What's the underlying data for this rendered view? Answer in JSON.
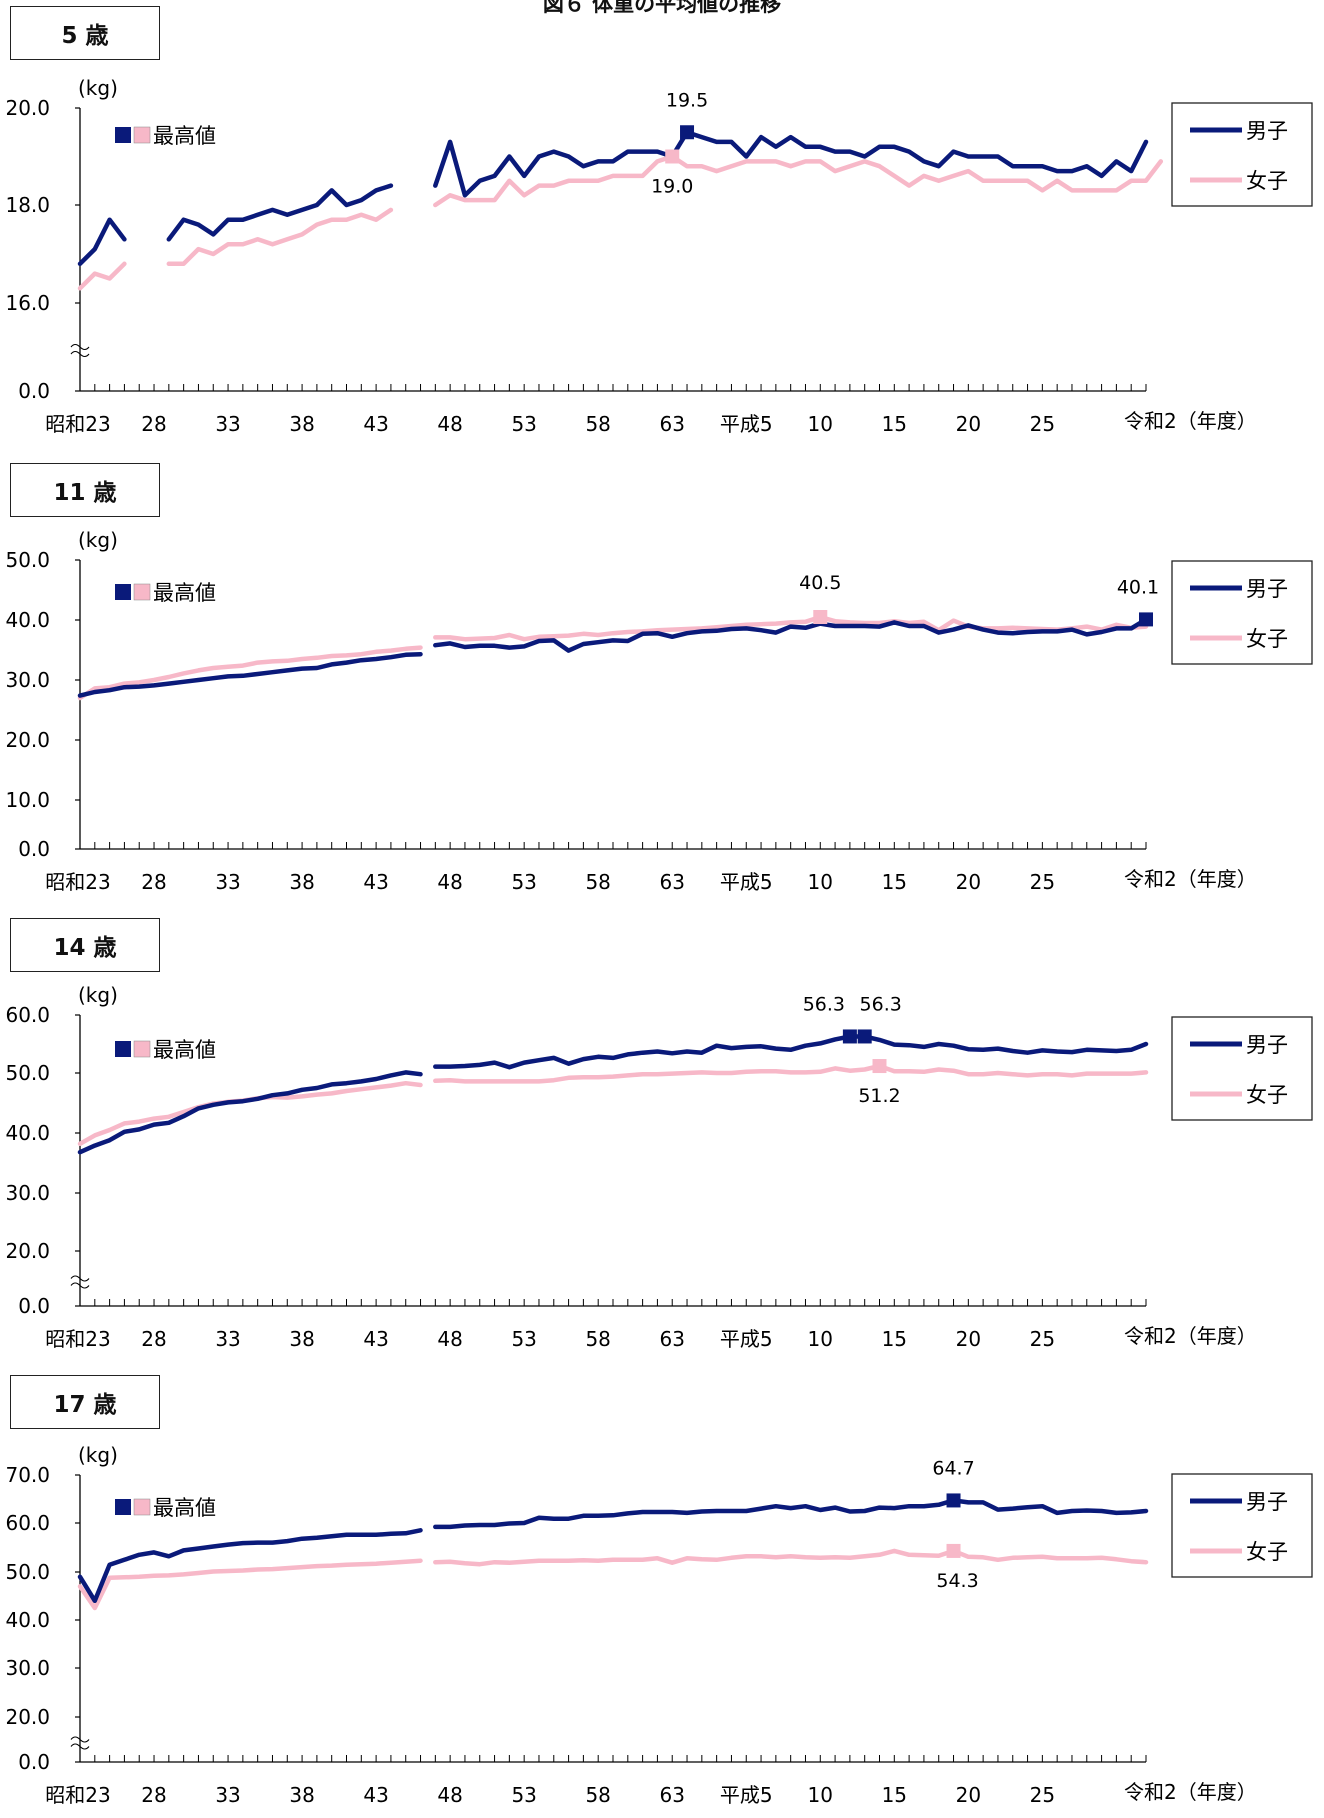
{
  "figure_title": "図６ 体重の平均値の推移",
  "x_tick_labels": [
    "昭和23",
    "28",
    "33",
    "38",
    "43",
    "48",
    "53",
    "58",
    "63",
    "平成5",
    "10",
    "15",
    "20",
    "25",
    "令和2（年度）"
  ],
  "colors": {
    "boys": "#0a1a7a",
    "girls": "#f7b8c8"
  },
  "chart_data": [
    {
      "type": "line",
      "panel": "5 歳",
      "ylabel": "(kg)",
      "y_tick_labels": [
        "20.0",
        "18.0",
        "16.0",
        "0.0"
      ],
      "axis_break": true,
      "x_start": "昭和23",
      "series": [
        {
          "name": "男子",
          "segments": [
            {
              "start": 0,
              "values": [
                16.8,
                17.1,
                17.7,
                17.3
              ]
            },
            {
              "start": 6,
              "values": [
                17.3,
                17.7,
                17.6,
                17.4,
                17.7,
                17.7,
                17.8,
                17.9,
                17.8,
                17.9,
                18.0,
                18.3,
                18.0,
                18.1,
                18.3,
                18.4
              ]
            },
            {
              "start": 24,
              "values": [
                18.4,
                19.3,
                18.2,
                18.5,
                18.6,
                19.0,
                18.6,
                19.0,
                19.1,
                19.0,
                18.8,
                18.9,
                18.9,
                19.1,
                19.1,
                19.1,
                19.0,
                19.5,
                19.4,
                19.3,
                19.3,
                19.0,
                19.4,
                19.2,
                19.4,
                19.2,
                19.2,
                19.1,
                19.1,
                19.0,
                19.2,
                19.2,
                19.1,
                18.9,
                18.8,
                19.1,
                19.0,
                19.0,
                19.0,
                18.8,
                18.8,
                18.8,
                18.7,
                18.7,
                18.8,
                18.6,
                18.9,
                18.7,
                19.3
              ]
            }
          ]
        },
        {
          "name": "女子",
          "segments": [
            {
              "start": 0,
              "values": [
                16.3,
                16.6,
                16.5,
                16.8
              ]
            },
            {
              "start": 6,
              "values": [
                16.8,
                16.8,
                17.1,
                17.0,
                17.2,
                17.2,
                17.3,
                17.2,
                17.3,
                17.4,
                17.6,
                17.7,
                17.7,
                17.8,
                17.7,
                17.9
              ]
            },
            {
              "start": 24,
              "values": [
                18.0,
                18.2,
                18.1,
                18.1,
                18.1,
                18.5,
                18.2,
                18.4,
                18.4,
                18.5,
                18.5,
                18.5,
                18.6,
                18.6,
                18.6,
                18.9,
                19.0,
                18.8,
                18.8,
                18.7,
                18.8,
                18.9,
                18.9,
                18.9,
                18.8,
                18.9,
                18.9,
                18.7,
                18.8,
                18.9,
                18.8,
                18.6,
                18.4,
                18.6,
                18.5,
                18.6,
                18.7,
                18.5,
                18.5,
                18.5,
                18.5,
                18.3,
                18.5,
                18.3,
                18.3,
                18.3,
                18.3,
                18.5,
                18.5,
                18.9
              ]
            }
          ]
        }
      ],
      "max_markers": [
        {
          "series": "男子",
          "label": "19.5",
          "index": 41
        },
        {
          "series": "女子",
          "label": "19.0",
          "index": 40
        }
      ],
      "legend": [
        "男子",
        "女子"
      ],
      "marker_legend_label": "最高値"
    },
    {
      "type": "line",
      "panel": "11 歳",
      "ylabel": "(kg)",
      "y_tick_labels": [
        "50.0",
        "40.0",
        "30.0",
        "20.0",
        "10.0",
        "0.0"
      ],
      "axis_break": false,
      "x_start": "昭和23",
      "series": [
        {
          "name": "男子",
          "segments": [
            {
              "start": 0,
              "values": [
                27.4,
                28.0,
                28.3,
                28.8,
                28.9,
                29.1,
                29.4,
                29.7,
                30.0,
                30.3,
                30.6,
                30.7,
                31.0,
                31.3,
                31.6,
                31.9,
                32.0,
                32.6,
                32.9,
                33.3,
                33.5,
                33.8,
                34.2,
                34.3
              ]
            },
            {
              "start": 24,
              "values": [
                35.8,
                36.1,
                35.5,
                35.7,
                35.7,
                35.4,
                35.6,
                36.5,
                36.6,
                34.9,
                36.0,
                36.3,
                36.6,
                36.5,
                37.7,
                37.8,
                37.2,
                37.8,
                38.1,
                38.2,
                38.5,
                38.6,
                38.3,
                37.9,
                38.9,
                38.7,
                39.4,
                39.0,
                39.0,
                39.0,
                38.9,
                39.6,
                39.0,
                39.0,
                37.9,
                38.4,
                39.1,
                38.4,
                37.9,
                37.8,
                38.0,
                38.1,
                38.1,
                38.4,
                37.6,
                38.0,
                38.6,
                38.6,
                40.1
              ]
            }
          ]
        },
        {
          "name": "女子",
          "segments": [
            {
              "start": 0,
              "values": [
                27.0,
                28.6,
                28.8,
                29.4,
                29.6,
                30.0,
                30.5,
                31.1,
                31.6,
                32.0,
                32.2,
                32.4,
                32.9,
                33.1,
                33.2,
                33.5,
                33.7,
                34.0,
                34.1,
                34.3,
                34.7,
                34.9,
                35.2,
                35.4
              ]
            },
            {
              "start": 24,
              "values": [
                37.1,
                37.1,
                36.8,
                36.9,
                37.0,
                37.5,
                36.8,
                37.2,
                37.3,
                37.4,
                37.7,
                37.5,
                37.8,
                38.0,
                38.1,
                38.3,
                38.4,
                38.5,
                38.6,
                38.8,
                39.0,
                39.2,
                39.3,
                39.4,
                39.6,
                39.7,
                40.5,
                39.8,
                39.6,
                39.5,
                39.5,
                39.8,
                39.5,
                39.7,
                38.3,
                39.9,
                38.9,
                38.6,
                38.6,
                38.7,
                38.6,
                38.5,
                38.4,
                38.6,
                38.9,
                38.4,
                39.2,
                38.7,
                38.9
              ]
            }
          ]
        }
      ],
      "max_markers": [
        {
          "series": "男子",
          "label": "40.1",
          "index": 72
        },
        {
          "series": "女子",
          "label": "40.5",
          "index": 50
        }
      ],
      "legend": [
        "男子",
        "女子"
      ],
      "marker_legend_label": "最高値"
    },
    {
      "type": "line",
      "panel": "14 歳",
      "ylabel": "(kg)",
      "y_tick_labels": [
        "60.0",
        "50.0",
        "40.0",
        "30.0",
        "20.0",
        "0.0"
      ],
      "axis_break": true,
      "x_start": "昭和23",
      "series": [
        {
          "name": "男子",
          "segments": [
            {
              "start": 0,
              "values": [
                36.8,
                37.9,
                38.8,
                40.2,
                40.6,
                41.4,
                41.7,
                42.8,
                44.1,
                44.7,
                45.1,
                45.3,
                45.7,
                46.3,
                46.6,
                47.2,
                47.5,
                48.1,
                48.3,
                48.6,
                49.0,
                49.6,
                50.1,
                49.8
              ]
            },
            {
              "start": 24,
              "values": [
                51.1,
                51.1,
                51.2,
                51.4,
                51.8,
                51.0,
                51.8,
                52.2,
                52.6,
                51.6,
                52.4,
                52.8,
                52.6,
                53.2,
                53.5,
                53.7,
                53.4,
                53.7,
                53.5,
                54.7,
                54.3,
                54.5,
                54.6,
                54.2,
                54.0,
                54.7,
                55.1,
                55.8,
                56.3,
                56.3,
                55.7,
                54.9,
                54.8,
                54.5,
                55.0,
                54.7,
                54.1,
                54.0,
                54.2,
                53.8,
                53.5,
                53.9,
                53.7,
                53.6,
                54.0,
                53.9,
                53.8,
                54.0,
                55.0
              ]
            }
          ]
        },
        {
          "name": "女子",
          "segments": [
            {
              "start": 0,
              "values": [
                38.2,
                39.6,
                40.5,
                41.6,
                41.9,
                42.4,
                42.7,
                43.5,
                44.3,
                44.9,
                45.2,
                45.4,
                45.8,
                46.0,
                45.9,
                46.1,
                46.4,
                46.6,
                47.0,
                47.3,
                47.6,
                47.9,
                48.3,
                48.0
              ]
            },
            {
              "start": 24,
              "values": [
                48.7,
                48.8,
                48.6,
                48.6,
                48.6,
                48.6,
                48.6,
                48.6,
                48.8,
                49.2,
                49.3,
                49.3,
                49.4,
                49.6,
                49.8,
                49.8,
                49.9,
                50.0,
                50.1,
                50.0,
                50.0,
                50.2,
                50.3,
                50.3,
                50.1,
                50.1,
                50.2,
                50.8,
                50.4,
                50.6,
                51.2,
                50.3,
                50.3,
                50.2,
                50.6,
                50.4,
                49.8,
                49.8,
                50.0,
                49.8,
                49.6,
                49.8,
                49.8,
                49.6,
                49.9,
                49.9,
                49.9,
                49.9,
                50.1
              ]
            }
          ]
        }
      ],
      "max_markers": [
        {
          "series": "男子",
          "label": "56.3",
          "index": 52
        },
        {
          "series": "男子",
          "label": "56.3",
          "index": 53
        },
        {
          "series": "女子",
          "label": "51.2",
          "index": 54
        }
      ],
      "legend": [
        "男子",
        "女子"
      ],
      "marker_legend_label": "最高値"
    },
    {
      "type": "line",
      "panel": "17 歳",
      "ylabel": "(kg)",
      "y_tick_labels": [
        "70.0",
        "60.0",
        "50.0",
        "40.0",
        "30.0",
        "20.0",
        "0.0"
      ],
      "axis_break": true,
      "x_start": "昭和23",
      "series": [
        {
          "name": "男子",
          "segments": [
            {
              "start": 0,
              "values": [
                49.0,
                44.0,
                51.5,
                52.5,
                53.5,
                54.0,
                53.2,
                54.4,
                54.8,
                55.2,
                55.6,
                55.9,
                56.0,
                56.0,
                56.3,
                56.8,
                57.0,
                57.3,
                57.6,
                57.6,
                57.6,
                57.8,
                57.9,
                58.5
              ]
            },
            {
              "start": 24,
              "values": [
                59.2,
                59.2,
                59.5,
                59.6,
                59.6,
                59.9,
                60.0,
                61.1,
                60.9,
                60.9,
                61.5,
                61.5,
                61.6,
                62.0,
                62.3,
                62.3,
                62.3,
                62.1,
                62.4,
                62.5,
                62.5,
                62.5,
                63.0,
                63.5,
                63.1,
                63.5,
                62.7,
                63.2,
                62.4,
                62.5,
                63.2,
                63.1,
                63.5,
                63.5,
                63.8,
                64.7,
                64.3,
                64.3,
                62.8,
                63.0,
                63.3,
                63.5,
                62.1,
                62.5,
                62.6,
                62.5,
                62.1,
                62.2,
                62.5
              ]
            }
          ]
        },
        {
          "name": "女子",
          "segments": [
            {
              "start": 0,
              "values": [
                47.0,
                42.5,
                48.8,
                48.9,
                49.0,
                49.2,
                49.3,
                49.5,
                49.8,
                50.1,
                50.2,
                50.3,
                50.5,
                50.6,
                50.8,
                51.0,
                51.2,
                51.3,
                51.5,
                51.6,
                51.7,
                51.9,
                52.1,
                52.3
              ]
            },
            {
              "start": 24,
              "values": [
                52.0,
                52.1,
                51.8,
                51.6,
                52.0,
                51.9,
                52.1,
                52.3,
                52.3,
                52.3,
                52.4,
                52.3,
                52.5,
                52.5,
                52.5,
                52.8,
                51.9,
                52.8,
                52.6,
                52.5,
                52.9,
                53.2,
                53.2,
                53.0,
                53.2,
                53.0,
                52.9,
                53.0,
                52.9,
                53.2,
                53.5,
                54.3,
                53.5,
                53.4,
                53.3,
                54.3,
                53.1,
                53.0,
                52.5,
                52.9,
                53.0,
                53.1,
                52.8,
                52.8,
                52.8,
                52.9,
                52.6,
                52.2,
                52.0
              ]
            }
          ]
        }
      ],
      "max_markers": [
        {
          "series": "男子",
          "label": "64.7",
          "index": 59
        },
        {
          "series": "女子",
          "label": "54.3",
          "index": 59
        }
      ],
      "legend": [
        "男子",
        "女子"
      ],
      "marker_legend_label": "最高値"
    }
  ]
}
